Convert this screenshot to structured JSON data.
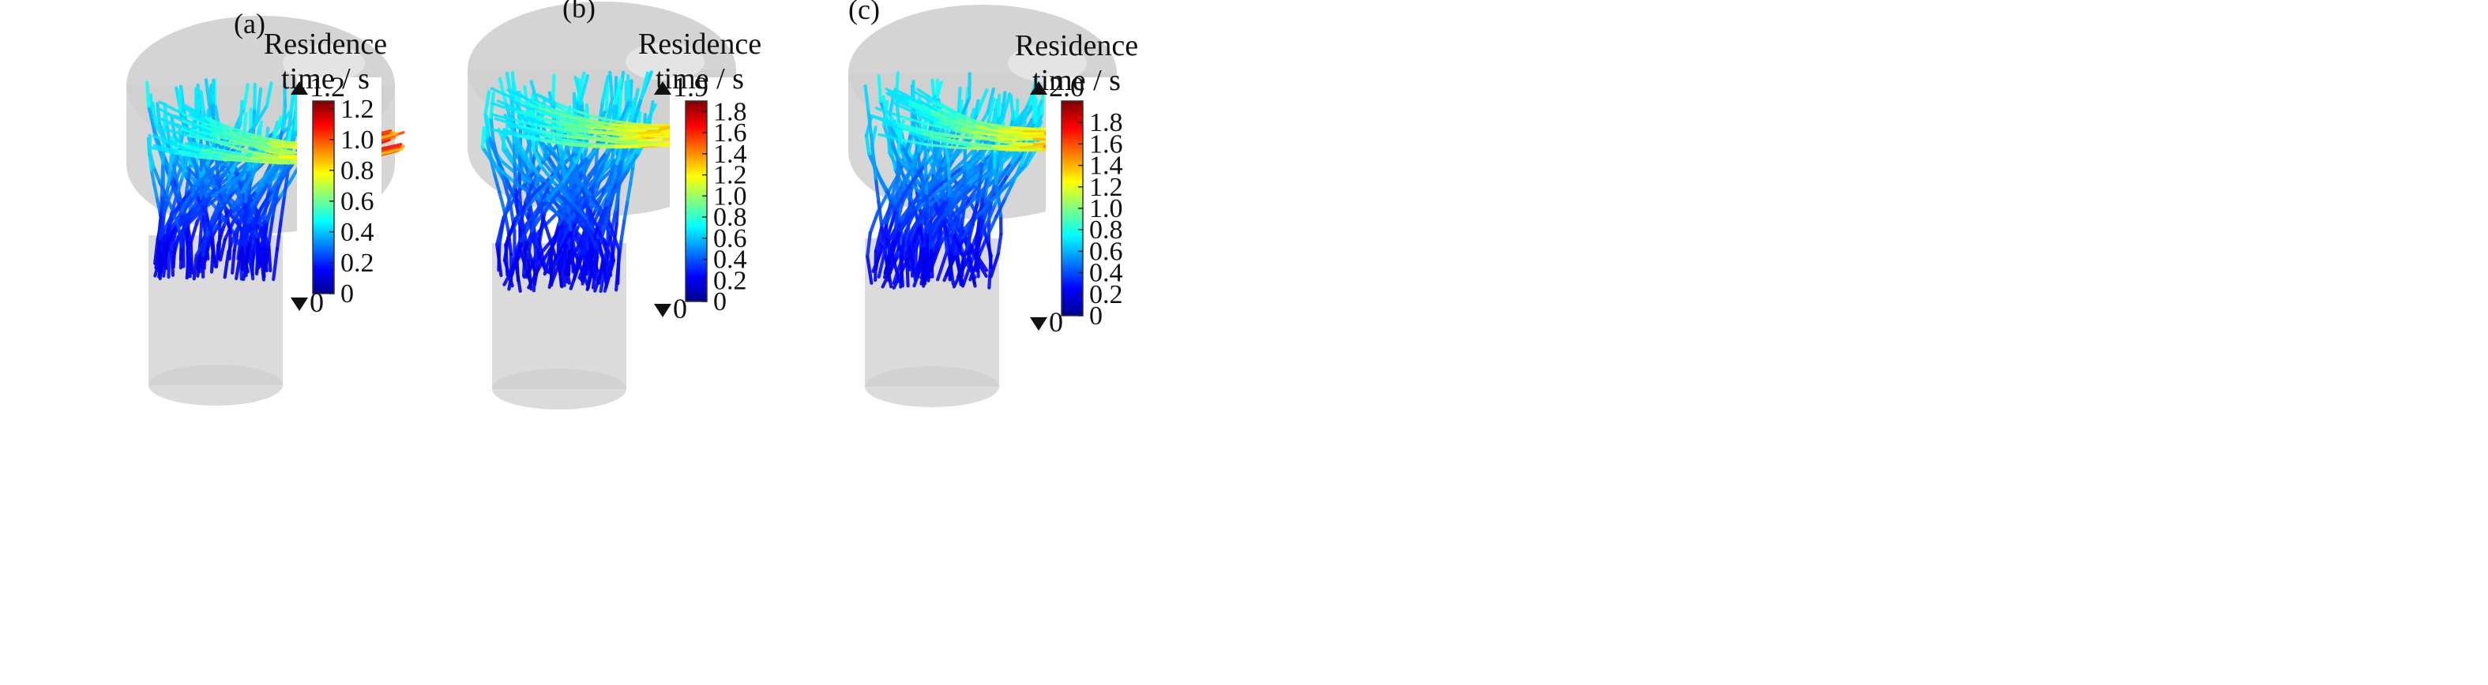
{
  "figure": {
    "panels": [
      {
        "label": "(a)",
        "colorbar": {
          "title_line1": "Residence",
          "title_line2": "time / s",
          "max_marker": "1.2",
          "min_marker": "0",
          "range": [
            0,
            1.25
          ],
          "ticks": [
            "0",
            "0.2",
            "0.4",
            "0.6",
            "0.8",
            "1.0",
            "1.2"
          ]
        }
      },
      {
        "label": "(b)",
        "colorbar": {
          "title_line1": "Residence",
          "title_line2": "time / s",
          "max_marker": "1.9",
          "min_marker": "0",
          "range": [
            0,
            1.9
          ],
          "ticks": [
            "0",
            "0.2",
            "0.4",
            "0.6",
            "0.8",
            "1.0",
            "1.2",
            "1.4",
            "1.6",
            "1.8"
          ]
        }
      },
      {
        "label": "(c)",
        "colorbar": {
          "title_line1": "Residence",
          "title_line2": "time / s",
          "max_marker": "2.0",
          "min_marker": "0",
          "range": [
            0,
            2.0
          ],
          "ticks": [
            "0",
            "0.2",
            "0.4",
            "0.6",
            "0.8",
            "1.0",
            "1.2",
            "1.4",
            "1.6",
            "1.8"
          ]
        }
      }
    ],
    "colormap": [
      "#00008f",
      "#0000ff",
      "#0080ff",
      "#00ffff",
      "#80ff80",
      "#ffff00",
      "#ff8000",
      "#ff0000",
      "#800000"
    ],
    "colors": {
      "geometry_fill": "#cfcfcf",
      "inlet_ellipse": "#e4e4e4",
      "marker": "#111111"
    }
  }
}
